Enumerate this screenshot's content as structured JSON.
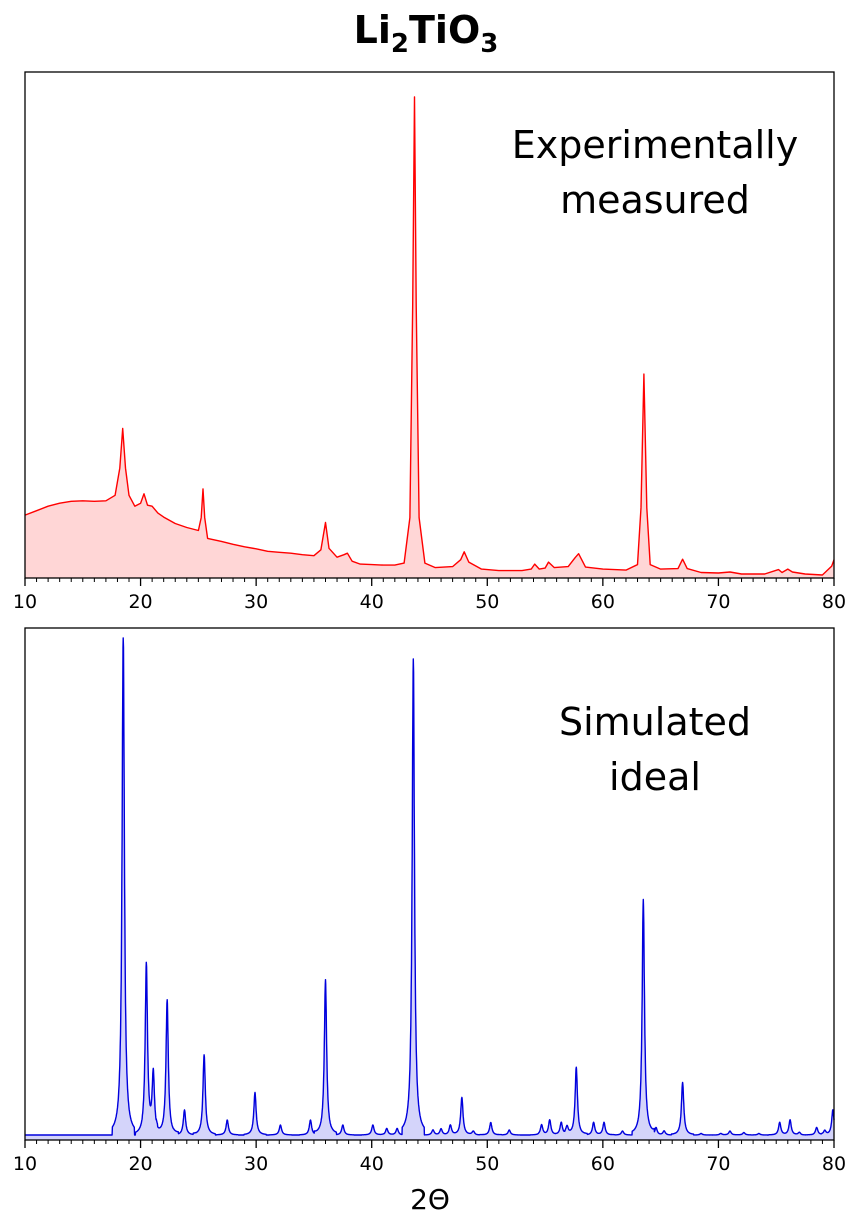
{
  "figure": {
    "title_parts": [
      "Li",
      "2",
      "TiO",
      "3"
    ],
    "xlabel": "2Θ"
  },
  "chart_data": [
    {
      "type": "area",
      "panel": "top",
      "annotation_lines": [
        "Experimentally",
        "measured"
      ],
      "xlim": [
        10,
        80
      ],
      "ylim": [
        0,
        100
      ],
      "xticks": [
        10,
        20,
        30,
        40,
        50,
        60,
        70,
        80
      ],
      "yticks": [],
      "line_color": "#ff0000",
      "fill_color": "#ffd6d6",
      "series": [
        {
          "points": [
            [
              10,
              12.5
            ],
            [
              11,
              13.4
            ],
            [
              12,
              14.3
            ],
            [
              13,
              14.9
            ],
            [
              14,
              15.3
            ],
            [
              15,
              15.4
            ],
            [
              16,
              15.3
            ],
            [
              17,
              15.4
            ],
            [
              17.8,
              16.5
            ],
            [
              18.2,
              22
            ],
            [
              18.45,
              30
            ],
            [
              18.7,
              22
            ],
            [
              19.0,
              16.5
            ],
            [
              19.5,
              14.3
            ],
            [
              20.0,
              14.9
            ],
            [
              20.3,
              16.8
            ],
            [
              20.6,
              14.5
            ],
            [
              21.0,
              14.3
            ],
            [
              21.5,
              12.9
            ],
            [
              22,
              12.1
            ],
            [
              23,
              10.8
            ],
            [
              24,
              10.0
            ],
            [
              25,
              9.4
            ],
            [
              25.25,
              12
            ],
            [
              25.4,
              17.8
            ],
            [
              25.55,
              12
            ],
            [
              25.8,
              7.8
            ],
            [
              27,
              7.2
            ],
            [
              28,
              6.6
            ],
            [
              29,
              6.1
            ],
            [
              30,
              5.7
            ],
            [
              31,
              5.2
            ],
            [
              32,
              5.0
            ],
            [
              33,
              4.8
            ],
            [
              34,
              4.5
            ],
            [
              35,
              4.3
            ],
            [
              35.6,
              5.5
            ],
            [
              36.0,
              11
            ],
            [
              36.3,
              5.8
            ],
            [
              37,
              4.0
            ],
            [
              37.6,
              4.5
            ],
            [
              37.9,
              4.8
            ],
            [
              38.3,
              3.2
            ],
            [
              39,
              2.6
            ],
            [
              40,
              2.5
            ],
            [
              41,
              2.4
            ],
            [
              42,
              2.4
            ],
            [
              42.8,
              2.8
            ],
            [
              43.3,
              12
            ],
            [
              43.55,
              55
            ],
            [
              43.7,
              97
            ],
            [
              43.85,
              55
            ],
            [
              44.1,
              12
            ],
            [
              44.6,
              2.8
            ],
            [
              45.5,
              1.9
            ],
            [
              47,
              2.1
            ],
            [
              47.7,
              3.5
            ],
            [
              48.0,
              5.1
            ],
            [
              48.4,
              3.0
            ],
            [
              49.5,
              1.6
            ],
            [
              51,
              1.3
            ],
            [
              53,
              1.3
            ],
            [
              53.8,
              1.6
            ],
            [
              54.1,
              2.6
            ],
            [
              54.5,
              1.6
            ],
            [
              55.0,
              1.8
            ],
            [
              55.3,
              3.0
            ],
            [
              55.8,
              1.9
            ],
            [
              57.0,
              2.1
            ],
            [
              57.6,
              3.9
            ],
            [
              57.9,
              4.7
            ],
            [
              58.5,
              2.0
            ],
            [
              60,
              1.6
            ],
            [
              62,
              1.4
            ],
            [
              63.0,
              2.5
            ],
            [
              63.3,
              14
            ],
            [
              63.55,
              41
            ],
            [
              63.8,
              14
            ],
            [
              64.1,
              2.5
            ],
            [
              65,
              1.6
            ],
            [
              66.5,
              1.7
            ],
            [
              66.9,
              3.6
            ],
            [
              67.3,
              1.7
            ],
            [
              68.5,
              0.9
            ],
            [
              70,
              0.8
            ],
            [
              71,
              1.0
            ],
            [
              72,
              0.6
            ],
            [
              74,
              0.6
            ],
            [
              75.2,
              1.5
            ],
            [
              75.5,
              0.9
            ],
            [
              76.0,
              1.6
            ],
            [
              76.4,
              1.0
            ],
            [
              77.5,
              0.6
            ],
            [
              79,
              0.4
            ],
            [
              79.8,
              2.2
            ],
            [
              80,
              3.5
            ]
          ]
        }
      ]
    },
    {
      "type": "area",
      "panel": "bottom",
      "annotation_lines": [
        "Simulated",
        "ideal"
      ],
      "xlim": [
        10,
        80
      ],
      "ylim": [
        0,
        100
      ],
      "xticks": [
        10,
        20,
        30,
        40,
        50,
        60,
        70,
        80
      ],
      "yticks": [],
      "line_color": "#0000dd",
      "fill_color": "#d4d4fa",
      "baseline": 0.8,
      "peaks": [
        [
          18.5,
          100
        ],
        [
          20.5,
          34
        ],
        [
          21.1,
          12
        ],
        [
          22.3,
          27
        ],
        [
          23.8,
          5
        ],
        [
          25.5,
          16
        ],
        [
          27.5,
          3
        ],
        [
          29.9,
          8.5
        ],
        [
          32.1,
          2
        ],
        [
          34.7,
          3
        ],
        [
          36.0,
          31
        ],
        [
          37.5,
          2
        ],
        [
          40.1,
          2
        ],
        [
          41.3,
          1.3
        ],
        [
          42.2,
          1.3
        ],
        [
          43.6,
          95
        ],
        [
          45.3,
          1
        ],
        [
          46.0,
          1.2
        ],
        [
          46.8,
          2
        ],
        [
          47.8,
          7.5
        ],
        [
          48.8,
          0.8
        ],
        [
          50.3,
          2.5
        ],
        [
          51.9,
          1
        ],
        [
          54.7,
          2
        ],
        [
          55.4,
          3
        ],
        [
          56.4,
          2.5
        ],
        [
          56.9,
          1.5
        ],
        [
          57.7,
          13.5
        ],
        [
          59.2,
          2.5
        ],
        [
          60.1,
          2.5
        ],
        [
          61.7,
          0.8
        ],
        [
          63.5,
          47
        ],
        [
          64.6,
          1.5
        ],
        [
          65.3,
          0.8
        ],
        [
          66.9,
          10.5
        ],
        [
          68.5,
          0.3
        ],
        [
          70.2,
          0.3
        ],
        [
          71.0,
          0.8
        ],
        [
          72.2,
          0.5
        ],
        [
          73.5,
          0.3
        ],
        [
          75.3,
          2.5
        ],
        [
          76.2,
          3
        ],
        [
          77.0,
          0.5
        ],
        [
          78.5,
          1.5
        ],
        [
          79.2,
          0.8
        ],
        [
          79.9,
          5
        ]
      ]
    }
  ]
}
